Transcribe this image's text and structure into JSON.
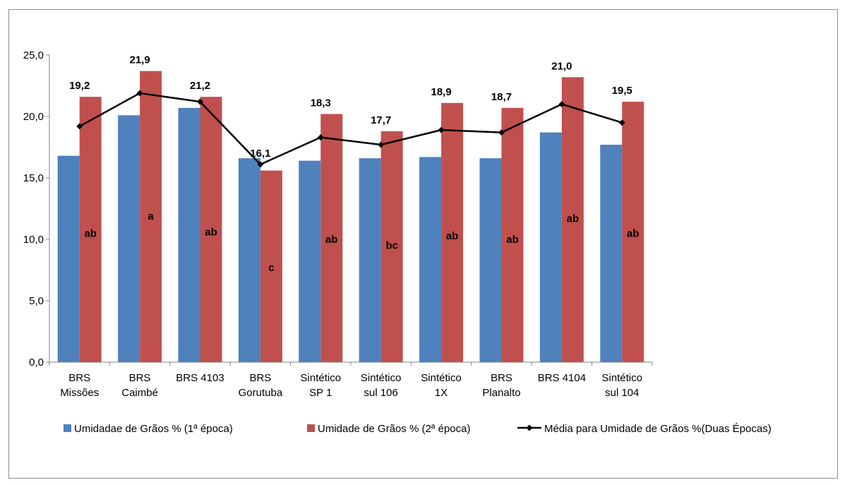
{
  "chart_data": {
    "type": "bar",
    "categories": [
      [
        "BRS",
        "Missões"
      ],
      [
        "BRS",
        "Caimbé"
      ],
      [
        "BRS 4103"
      ],
      [
        "BRS",
        "Gorutuba"
      ],
      [
        "Sintético",
        "SP 1"
      ],
      [
        "Sintético",
        "sul 106"
      ],
      [
        "Sintético",
        "1X"
      ],
      [
        "BRS",
        "Planalto"
      ],
      [
        "BRS 4104"
      ],
      [
        "Sintético",
        "sul  104"
      ]
    ],
    "ylim": [
      0,
      25
    ],
    "yticks": [
      "0,0",
      "5,0",
      "10,0",
      "15,0",
      "20,0",
      "25,0"
    ],
    "ytick_values": [
      0,
      5,
      10,
      15,
      20,
      25
    ],
    "legend_position": "bottom",
    "series": [
      {
        "name": "Umidadae de Grãos % (1ª época)",
        "type": "bar",
        "color": "#4F81BD",
        "values": [
          16.8,
          20.1,
          20.7,
          16.6,
          16.4,
          16.6,
          16.7,
          16.6,
          18.7,
          17.7
        ]
      },
      {
        "name": "Umidade de Grãos % (2ª época)",
        "type": "bar",
        "color": "#C0504D",
        "values": [
          21.6,
          23.7,
          21.6,
          15.6,
          20.2,
          18.8,
          21.1,
          20.7,
          23.2,
          21.2
        ],
        "letters": [
          "ab",
          "a",
          "ab",
          "c",
          "ab",
          "bc",
          "ab",
          "ab",
          "ab",
          "ab"
        ],
        "letter_values": [
          10.5,
          11.9,
          10.6,
          7.7,
          10.0,
          9.5,
          10.3,
          10.0,
          11.7,
          10.5
        ]
      },
      {
        "name": "Média para Umidade de Grãos %(Duas Épocas)",
        "type": "line",
        "color": "#000000",
        "values": [
          19.2,
          21.9,
          21.2,
          16.1,
          18.3,
          17.7,
          18.9,
          18.7,
          21.0,
          19.5
        ],
        "labels": [
          "19,2",
          "21,9",
          "21,2",
          "16,1",
          "18,3",
          "17,7",
          "18,9",
          "18,7",
          "21,0",
          "19,5"
        ]
      }
    ]
  }
}
